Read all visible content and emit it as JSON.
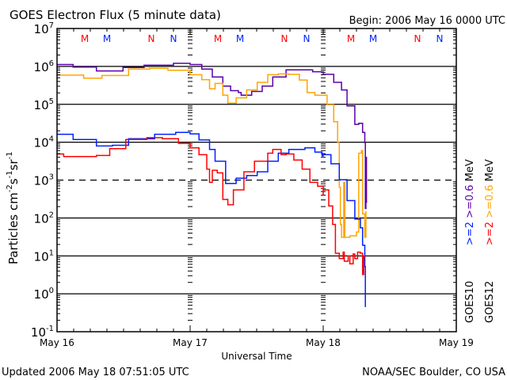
{
  "chart_data": {
    "type": "line",
    "title": "GOES Electron Flux (5 minute data)",
    "begin_label": "Begin: 2006 May 16 0000 UTC",
    "xlabel": "Universal Time",
    "ylabel": "Particles cm⁻²s⁻¹sr⁻¹",
    "ylabel_parts": {
      "base": "Particles cm",
      "e1": "-2",
      "s": "s",
      "e2": "-1",
      "sr": "sr",
      "e3": "-1"
    },
    "x_unit": "hours since 2006 May 16 00:00 UTC",
    "xlim": [
      0,
      72
    ],
    "y_scale": "log",
    "ylim_exponents": [
      -1,
      7
    ],
    "y_tick_labels": [
      {
        "base": "10",
        "exp": "7"
      },
      {
        "base": "10",
        "exp": "6"
      },
      {
        "base": "10",
        "exp": "5"
      },
      {
        "base": "10",
        "exp": "4"
      },
      {
        "base": "10",
        "exp": "3"
      },
      {
        "base": "10",
        "exp": "2"
      },
      {
        "base": "10",
        "exp": "1"
      },
      {
        "base": "10",
        "exp": "0"
      },
      {
        "base": "10",
        "exp": "-1"
      }
    ],
    "x_tick_labels": [
      "May 16",
      "May 17",
      "May 18",
      "May 19"
    ],
    "dashed_threshold_exponent": 3,
    "footer_left": "Updated 2006 May 18 07:51:05 UTC",
    "footer_right": "NOAA/SEC Boulder, CO USA",
    "legend": {
      "satellites": [
        "GOES10",
        "GOES12"
      ],
      "unit": "MeV",
      "entries": [
        {
          "satellite": "GOES10",
          "label": ">=0.6",
          "color": "#5a00a8"
        },
        {
          "satellite": "GOES12",
          "label": ">=0.6",
          "color": "#ffa500"
        },
        {
          "satellite": "GOES10",
          "label": ">=2",
          "color": "#0022ff"
        },
        {
          "satellite": "GOES12",
          "label": ">=2",
          "color": "#ff0000"
        }
      ]
    },
    "markers": [
      {
        "label": "M",
        "color": "#ff0000",
        "hours": [
          5,
          29,
          53
        ]
      },
      {
        "label": "M",
        "color": "#0022ff",
        "hours": [
          9,
          33,
          57
        ]
      },
      {
        "label": "N",
        "color": "#ff0000",
        "hours": [
          17,
          41,
          65
        ]
      },
      {
        "label": "N",
        "color": "#0022ff",
        "hours": [
          21,
          45,
          69
        ]
      }
    ],
    "series": [
      {
        "name": "GOES10 >=0.6 MeV",
        "color": "#5a00a8",
        "value_format": "log10_flux",
        "points": [
          [
            0,
            6.05
          ],
          [
            2.9,
            5.98
          ],
          [
            7.1,
            5.88
          ],
          [
            11.9,
            5.97
          ],
          [
            15.7,
            6.03
          ],
          [
            21,
            6.08
          ],
          [
            24,
            6.05
          ],
          [
            26.1,
            5.93
          ],
          [
            28,
            5.72
          ],
          [
            29.9,
            5.48
          ],
          [
            31.3,
            5.36
          ],
          [
            32.7,
            5.31
          ],
          [
            33.2,
            5.24
          ],
          [
            35.1,
            5.34
          ],
          [
            37,
            5.48
          ],
          [
            38.9,
            5.72
          ],
          [
            41.3,
            5.91
          ],
          [
            44.7,
            5.91
          ],
          [
            46.1,
            5.86
          ],
          [
            48,
            5.79
          ],
          [
            49.9,
            5.58
          ],
          [
            51.3,
            5.38
          ],
          [
            52.3,
            4.96
          ],
          [
            53.7,
            4.47
          ],
          [
            54.4,
            4.5
          ],
          [
            55.1,
            4.26
          ],
          [
            55.5,
            3.99
          ],
          [
            55.6,
            2.25
          ],
          [
            55.7,
            3.6
          ],
          [
            55.8,
            2.4
          ],
          [
            55.8,
            3.3
          ]
        ]
      },
      {
        "name": "GOES12 >=0.6 MeV",
        "color": "#ffa500",
        "value_format": "log10_flux",
        "points": [
          [
            0,
            5.77
          ],
          [
            4.8,
            5.69
          ],
          [
            8.1,
            5.76
          ],
          [
            12.9,
            5.93
          ],
          [
            16.7,
            5.95
          ],
          [
            20,
            5.9
          ],
          [
            24,
            5.78
          ],
          [
            26.1,
            5.65
          ],
          [
            27.5,
            5.41
          ],
          [
            28.5,
            5.55
          ],
          [
            29.9,
            5.24
          ],
          [
            30.8,
            5.03
          ],
          [
            32.3,
            5.17
          ],
          [
            34.2,
            5.38
          ],
          [
            36.1,
            5.58
          ],
          [
            38,
            5.78
          ],
          [
            39.9,
            5.8
          ],
          [
            41.8,
            5.79
          ],
          [
            43.7,
            5.64
          ],
          [
            45.1,
            5.31
          ],
          [
            46.5,
            5.24
          ],
          [
            47.8,
            5.24
          ],
          [
            48.7,
            4.99
          ],
          [
            49.9,
            4.54
          ],
          [
            50.6,
            3.99
          ],
          [
            50.9,
            2.81
          ],
          [
            51.1,
            1.83
          ],
          [
            51.3,
            1.49
          ],
          [
            51.7,
            2.94
          ],
          [
            51.9,
            1.49
          ],
          [
            52.8,
            1.53
          ],
          [
            54,
            1.63
          ],
          [
            54.4,
            3.71
          ],
          [
            54.9,
            3.78
          ],
          [
            55.1,
            2.11
          ],
          [
            55.5,
            1.49
          ],
          [
            55.7,
            2.18
          ]
        ]
      },
      {
        "name": "GOES10 >=2 MeV",
        "color": "#0022ff",
        "value_format": "log10_flux",
        "points": [
          [
            0,
            4.21
          ],
          [
            2.9,
            4.07
          ],
          [
            7.1,
            3.9
          ],
          [
            10,
            3.92
          ],
          [
            12.9,
            4.09
          ],
          [
            17.6,
            4.21
          ],
          [
            21.4,
            4.26
          ],
          [
            24,
            4.22
          ],
          [
            25.6,
            4.06
          ],
          [
            27.5,
            3.81
          ],
          [
            28.5,
            3.5
          ],
          [
            30.4,
            2.91
          ],
          [
            32.3,
            3.05
          ],
          [
            34.2,
            3.12
          ],
          [
            36.1,
            3.22
          ],
          [
            38,
            3.5
          ],
          [
            39.9,
            3.71
          ],
          [
            41.8,
            3.81
          ],
          [
            44.7,
            3.85
          ],
          [
            46.5,
            3.74
          ],
          [
            47.8,
            3.64
          ],
          [
            48,
            3.67
          ],
          [
            49.4,
            3.43
          ],
          [
            50.9,
            3.01
          ],
          [
            52.3,
            2.46
          ],
          [
            53.7,
            1.97
          ],
          [
            54.7,
            1.74
          ],
          [
            55.1,
            1.28
          ],
          [
            55.5,
            0.72
          ],
          [
            55.6,
            -0.35
          ]
        ]
      },
      {
        "name": "GOES12 >=2 MeV",
        "color": "#ff0000",
        "value_format": "log10_flux",
        "points": [
          [
            0,
            3.69
          ],
          [
            1.2,
            3.62
          ],
          [
            4.8,
            3.62
          ],
          [
            7.1,
            3.65
          ],
          [
            9.5,
            3.83
          ],
          [
            12.4,
            4.07
          ],
          [
            16.2,
            4.12
          ],
          [
            19,
            4.09
          ],
          [
            21.9,
            3.97
          ],
          [
            24,
            3.85
          ],
          [
            25.6,
            3.67
          ],
          [
            27,
            3.29
          ],
          [
            27.5,
            2.94
          ],
          [
            28,
            3.26
          ],
          [
            28.9,
            3.19
          ],
          [
            29.9,
            2.49
          ],
          [
            30.8,
            2.35
          ],
          [
            31.8,
            2.74
          ],
          [
            33.7,
            3.22
          ],
          [
            35.6,
            3.5
          ],
          [
            38,
            3.71
          ],
          [
            38.9,
            3.81
          ],
          [
            40.4,
            3.67
          ],
          [
            41.3,
            3.69
          ],
          [
            42.7,
            3.53
          ],
          [
            44.2,
            3.29
          ],
          [
            45.6,
            2.94
          ],
          [
            47,
            2.84
          ],
          [
            48,
            2.6
          ],
          [
            48,
            2.74
          ],
          [
            49,
            2.32
          ],
          [
            49.7,
            1.83
          ],
          [
            50.2,
            1.07
          ],
          [
            50.9,
            0.93
          ],
          [
            51.6,
            1.1
          ],
          [
            51.8,
            0.86
          ],
          [
            52.5,
            1.0
          ],
          [
            52.8,
            0.79
          ],
          [
            53.4,
            1.05
          ],
          [
            53.7,
            0.93
          ],
          [
            54.2,
            1.1
          ],
          [
            54.7,
            1.07
          ],
          [
            55.1,
            0.51
          ],
          [
            55.3,
            1.0
          ],
          [
            55.6,
            1.0
          ]
        ]
      }
    ]
  }
}
